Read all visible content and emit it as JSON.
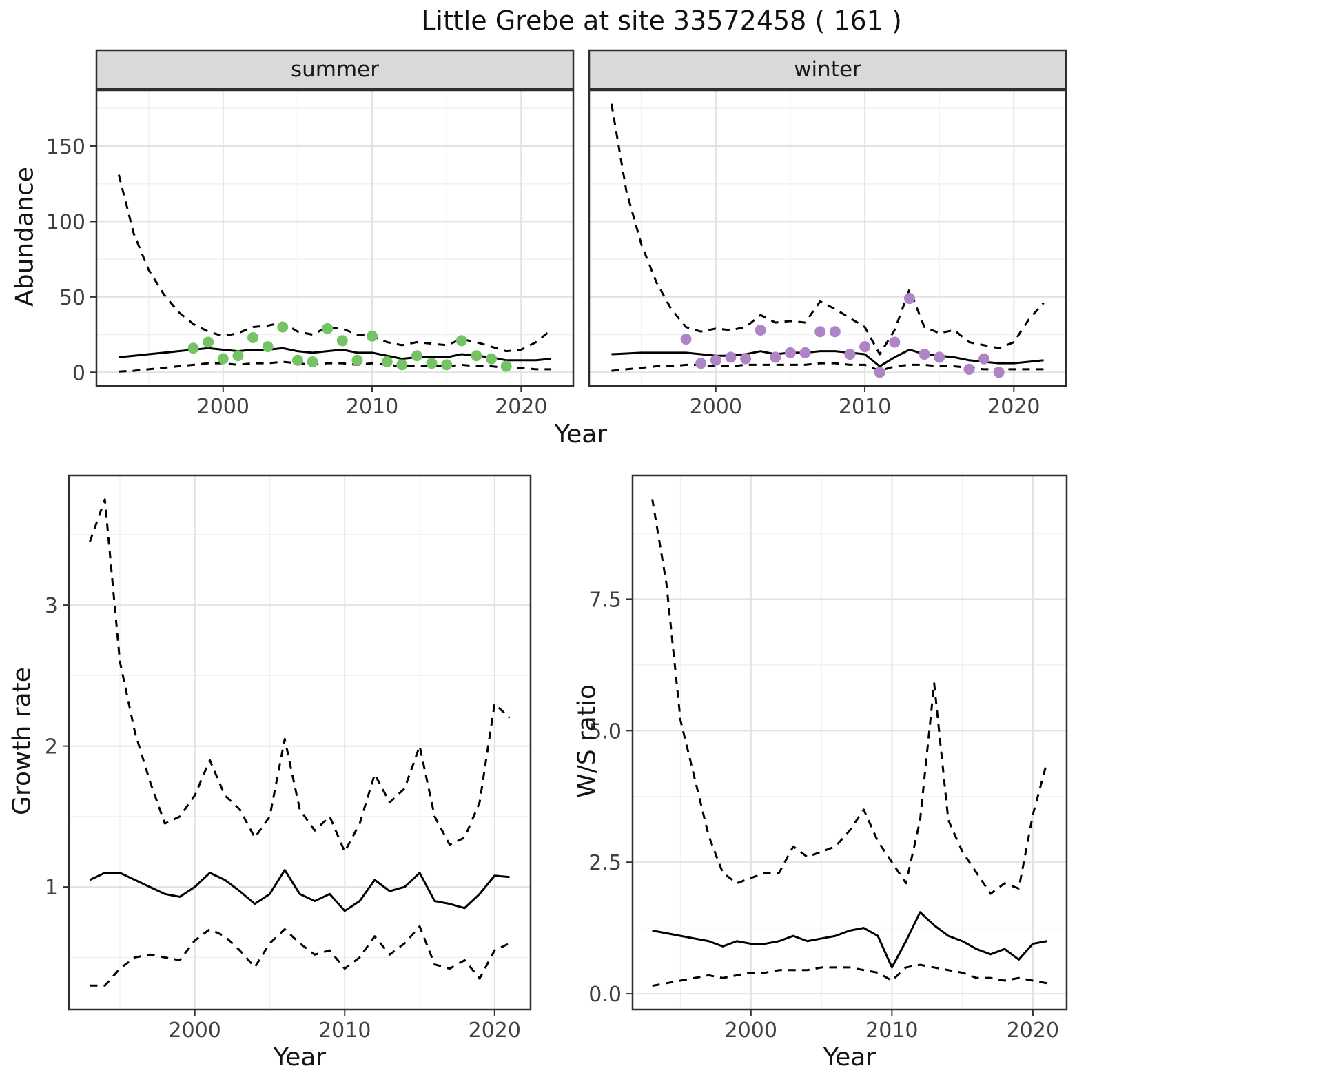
{
  "title": "Little Grebe at site 33572458 ( 161 )",
  "colors": {
    "summer_point": "#74c365",
    "winter_point": "#ad85c6",
    "line": "#000000",
    "strip_bg": "#d9d9d9",
    "panel_border": "#2e2e2e",
    "grid_major": "#e2e2e2",
    "grid_minor": "#f1f1f1",
    "tick_text": "#404040"
  },
  "chart_data": [
    {
      "id": "abundance-summer",
      "type": "line",
      "facet_label": "summer",
      "xlabel": "Year",
      "ylabel": "Abundance",
      "xlim": [
        1991.5,
        2023.5
      ],
      "ylim": [
        -9,
        187
      ],
      "xticks": [
        2000,
        2010,
        2020
      ],
      "xtick_labels": [
        "2000",
        "2010",
        "2020"
      ],
      "yticks": [
        0,
        50,
        100,
        150
      ],
      "ytick_labels": [
        "0",
        "50",
        "100",
        "150"
      ],
      "xminor": [
        1995,
        2005,
        2015
      ],
      "yminor": [
        25,
        75,
        125,
        175
      ],
      "x": [
        1993,
        1994,
        1995,
        1996,
        1997,
        1998,
        1999,
        2000,
        2001,
        2002,
        2003,
        2004,
        2005,
        2006,
        2007,
        2008,
        2009,
        2010,
        2011,
        2012,
        2013,
        2014,
        2015,
        2016,
        2017,
        2018,
        2019,
        2020,
        2021,
        2022
      ],
      "series": [
        {
          "name": "upper-ci",
          "style": "dashed",
          "values": [
            131,
            92,
            68,
            52,
            40,
            32,
            27,
            24,
            26,
            30,
            31,
            33,
            27,
            25,
            30,
            29,
            25,
            24,
            20,
            18,
            20,
            19,
            18,
            22,
            20,
            17,
            14,
            15,
            20,
            28
          ]
        },
        {
          "name": "fit",
          "style": "solid",
          "values": [
            10,
            11,
            12,
            13,
            14,
            15,
            16,
            15,
            14,
            15,
            15,
            16,
            14,
            13,
            14,
            15,
            13,
            13,
            11,
            9,
            10,
            10,
            10,
            12,
            11,
            10,
            8,
            8,
            8,
            9
          ]
        },
        {
          "name": "lower-ci",
          "style": "dashed",
          "values": [
            0.5,
            1,
            2,
            3,
            4,
            5,
            6,
            6,
            5,
            6,
            6,
            7,
            6,
            5,
            6,
            6,
            5,
            6,
            5,
            4,
            4,
            4,
            4,
            5,
            4,
            4,
            3,
            3,
            2,
            2
          ]
        },
        {
          "name": "observed-points",
          "style": "points",
          "color": "#74c365",
          "x": [
            1998,
            1999,
            2000,
            2001,
            2002,
            2003,
            2004,
            2005,
            2006,
            2007,
            2008,
            2009,
            2010,
            2011,
            2012,
            2013,
            2014,
            2015,
            2016,
            2017,
            2018,
            2019
          ],
          "values": [
            16,
            20,
            9,
            11,
            23,
            17,
            30,
            8,
            7,
            29,
            21,
            8,
            24,
            7,
            5,
            11,
            6,
            5,
            21,
            11,
            9,
            4
          ]
        }
      ]
    },
    {
      "id": "abundance-winter",
      "type": "line",
      "facet_label": "winter",
      "xlabel": "Year",
      "ylabel": "Abundance",
      "xlim": [
        1991.5,
        2023.5
      ],
      "ylim": [
        -9,
        187
      ],
      "xticks": [
        2000,
        2010,
        2020
      ],
      "xtick_labels": [
        "2000",
        "2010",
        "2020"
      ],
      "yticks": [
        0,
        50,
        100,
        150
      ],
      "ytick_labels": [
        "0",
        "50",
        "100",
        "150"
      ],
      "xminor": [
        1995,
        2005,
        2015
      ],
      "yminor": [
        25,
        75,
        125,
        175
      ],
      "x": [
        1993,
        1994,
        1995,
        1996,
        1997,
        1998,
        1999,
        2000,
        2001,
        2002,
        2003,
        2004,
        2005,
        2006,
        2007,
        2008,
        2009,
        2010,
        2011,
        2012,
        2013,
        2014,
        2015,
        2016,
        2017,
        2018,
        2019,
        2020,
        2021,
        2022
      ],
      "series": [
        {
          "name": "upper-ci",
          "style": "dashed",
          "values": [
            178,
            120,
            85,
            60,
            42,
            30,
            27,
            29,
            28,
            30,
            38,
            33,
            34,
            33,
            47,
            42,
            36,
            30,
            12,
            28,
            55,
            30,
            26,
            28,
            20,
            18,
            16,
            20,
            35,
            46
          ]
        },
        {
          "name": "fit",
          "style": "solid",
          "values": [
            12,
            12.5,
            13,
            13,
            13,
            13,
            12,
            11,
            11,
            12,
            14,
            12,
            13,
            13,
            14,
            14,
            13,
            12,
            4,
            10,
            15,
            12,
            11,
            10,
            8,
            7,
            6,
            6,
            7,
            8
          ]
        },
        {
          "name": "lower-ci",
          "style": "dashed",
          "values": [
            1,
            2,
            3,
            4,
            4,
            5,
            5,
            4,
            4,
            5,
            5,
            5,
            5,
            5,
            6,
            6,
            5,
            5,
            1,
            4,
            5,
            5,
            4,
            4,
            3,
            2,
            2,
            2,
            2,
            2
          ]
        },
        {
          "name": "observed-points",
          "style": "points",
          "color": "#ad85c6",
          "x": [
            1998,
            1999,
            2000,
            2001,
            2002,
            2003,
            2004,
            2005,
            2006,
            2007,
            2008,
            2009,
            2010,
            2011,
            2012,
            2013,
            2014,
            2015,
            2017,
            2018,
            2019
          ],
          "values": [
            22,
            6,
            8,
            10,
            9,
            28,
            10,
            13,
            13,
            27,
            27,
            12,
            17,
            0,
            20,
            49,
            12,
            10,
            2,
            9,
            0
          ]
        }
      ]
    },
    {
      "id": "growth-rate",
      "type": "line",
      "facet_label": "",
      "xlabel": "Year",
      "ylabel": "Growth rate",
      "xlim": [
        1991.6,
        2022.4
      ],
      "ylim": [
        0.13,
        3.92
      ],
      "xticks": [
        2000,
        2010,
        2020
      ],
      "xtick_labels": [
        "2000",
        "2010",
        "2020"
      ],
      "yticks": [
        1,
        2,
        3
      ],
      "ytick_labels": [
        "1",
        "2",
        "3"
      ],
      "xminor": [
        1995,
        2005,
        2015
      ],
      "yminor": [
        0.5,
        1.5,
        2.5,
        3.5
      ],
      "x": [
        1993,
        1994,
        1995,
        1996,
        1997,
        1998,
        1999,
        2000,
        2001,
        2002,
        2003,
        2004,
        2005,
        2006,
        2007,
        2008,
        2009,
        2010,
        2011,
        2012,
        2013,
        2014,
        2015,
        2016,
        2017,
        2018,
        2019,
        2020,
        2021
      ],
      "series": [
        {
          "name": "upper-ci",
          "style": "dashed",
          "values": [
            3.45,
            3.75,
            2.6,
            2.1,
            1.75,
            1.45,
            1.5,
            1.65,
            1.9,
            1.65,
            1.55,
            1.35,
            1.5,
            2.05,
            1.55,
            1.4,
            1.5,
            1.25,
            1.45,
            1.8,
            1.6,
            1.7,
            2.0,
            1.5,
            1.3,
            1.35,
            1.6,
            2.3,
            2.2
          ]
        },
        {
          "name": "fit",
          "style": "solid",
          "values": [
            1.05,
            1.1,
            1.1,
            1.05,
            1.0,
            0.95,
            0.93,
            1.0,
            1.1,
            1.05,
            0.97,
            0.88,
            0.95,
            1.12,
            0.95,
            0.9,
            0.95,
            0.83,
            0.9,
            1.05,
            0.97,
            1.0,
            1.1,
            0.9,
            0.88,
            0.85,
            0.95,
            1.08,
            1.07
          ]
        },
        {
          "name": "lower-ci",
          "style": "dashed",
          "values": [
            0.3,
            0.3,
            0.42,
            0.5,
            0.52,
            0.5,
            0.48,
            0.62,
            0.7,
            0.65,
            0.55,
            0.43,
            0.6,
            0.7,
            0.6,
            0.52,
            0.55,
            0.42,
            0.5,
            0.65,
            0.52,
            0.6,
            0.72,
            0.45,
            0.42,
            0.48,
            0.35,
            0.55,
            0.6
          ]
        }
      ]
    },
    {
      "id": "ws-ratio",
      "type": "line",
      "facet_label": "",
      "xlabel": "Year",
      "ylabel": "W/S ratio",
      "xlim": [
        1991.6,
        2022.4
      ],
      "ylim": [
        -0.3,
        9.85
      ],
      "xticks": [
        2000,
        2010,
        2020
      ],
      "xtick_labels": [
        "2000",
        "2010",
        "2020"
      ],
      "yticks": [
        0,
        2.5,
        5.0,
        7.5
      ],
      "ytick_labels": [
        "0.0",
        "2.5",
        "5.0",
        "7.5"
      ],
      "xminor": [
        1995,
        2005,
        2015
      ],
      "yminor": [
        1.25,
        3.75,
        6.25,
        8.75
      ],
      "x": [
        1993,
        1994,
        1995,
        1996,
        1997,
        1998,
        1999,
        2000,
        2001,
        2002,
        2003,
        2004,
        2005,
        2006,
        2007,
        2008,
        2009,
        2010,
        2011,
        2012,
        2013,
        2014,
        2015,
        2016,
        2017,
        2018,
        2019,
        2020,
        2021
      ],
      "series": [
        {
          "name": "upper-ci",
          "style": "dashed",
          "values": [
            9.4,
            7.8,
            5.2,
            4.1,
            3.0,
            2.3,
            2.1,
            2.2,
            2.3,
            2.3,
            2.8,
            2.6,
            2.7,
            2.8,
            3.1,
            3.5,
            2.9,
            2.5,
            2.1,
            3.3,
            5.9,
            3.3,
            2.7,
            2.3,
            1.9,
            2.1,
            2.0,
            3.4,
            4.4
          ]
        },
        {
          "name": "fit",
          "style": "solid",
          "values": [
            1.2,
            1.15,
            1.1,
            1.05,
            1.0,
            0.9,
            1.0,
            0.95,
            0.95,
            1.0,
            1.1,
            1.0,
            1.05,
            1.1,
            1.2,
            1.25,
            1.1,
            0.5,
            1.0,
            1.55,
            1.3,
            1.1,
            1.0,
            0.85,
            0.75,
            0.85,
            0.65,
            0.95,
            1.0
          ]
        },
        {
          "name": "lower-ci",
          "style": "dashed",
          "values": [
            0.15,
            0.2,
            0.25,
            0.3,
            0.35,
            0.3,
            0.35,
            0.4,
            0.4,
            0.45,
            0.45,
            0.45,
            0.5,
            0.5,
            0.5,
            0.45,
            0.4,
            0.25,
            0.5,
            0.55,
            0.5,
            0.45,
            0.4,
            0.3,
            0.3,
            0.25,
            0.3,
            0.25,
            0.2
          ]
        }
      ]
    }
  ]
}
